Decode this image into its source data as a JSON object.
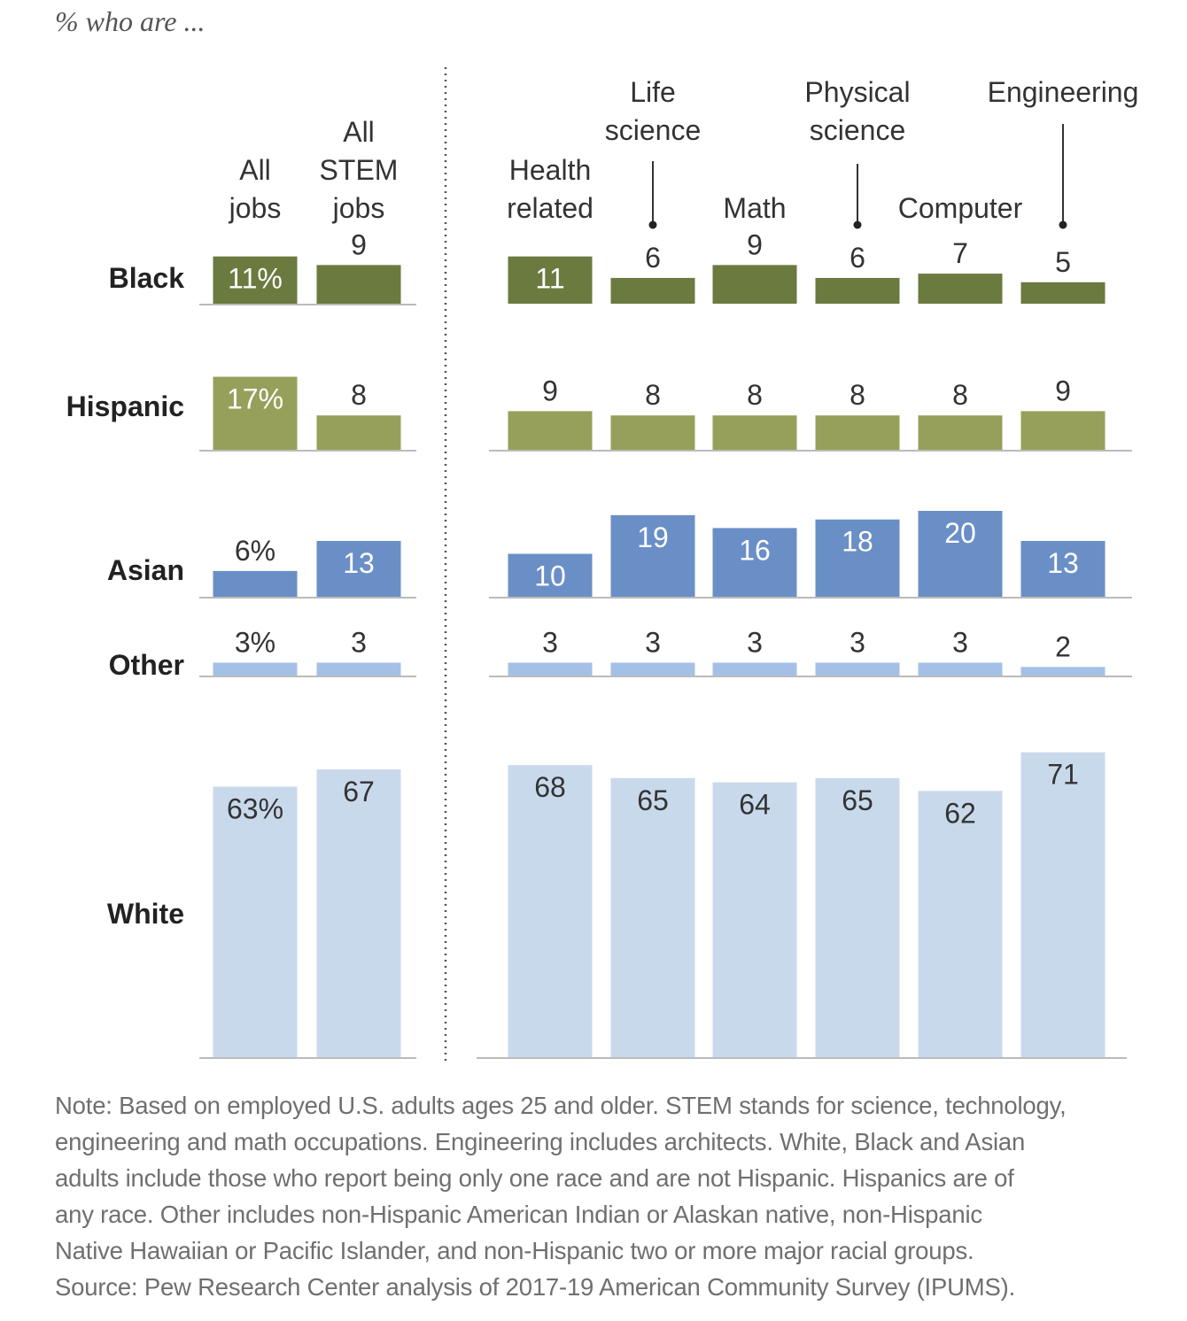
{
  "subtitle": "% who are ...",
  "note": {
    "lines": [
      "Note: Based on employed U.S. adults ages 25 and older. STEM stands for science, technology,",
      "engineering and math occupations. Engineering includes architects. White, Black and Asian",
      "adults include those who report being only one race and are not Hispanic. Hispanics are of",
      "any race. Other includes non-Hispanic American Indian or Alaskan native, non-Hispanic",
      "Native Hawaiian or Pacific Islander, and non-Hispanic two or more major racial groups.",
      "Source: Pew Research Center analysis of 2017-19 American Community Survey (IPUMS)."
    ]
  },
  "chart_data": {
    "type": "bar",
    "categories": [
      [
        "All",
        "jobs"
      ],
      [
        "All",
        "STEM",
        "jobs"
      ],
      [
        "Health",
        "related"
      ],
      [
        "Life",
        "science"
      ],
      [
        "Math"
      ],
      [
        "Physical",
        "science"
      ],
      [
        "Computer"
      ],
      [
        "Engineering"
      ]
    ],
    "series": [
      {
        "name": "Black",
        "color": "#6b7a3f",
        "label_color": "#ffffff",
        "values": [
          11,
          9,
          11,
          6,
          9,
          6,
          7,
          5
        ],
        "labels": [
          "11%",
          "9",
          "11",
          "6",
          "9",
          "6",
          "7",
          "5"
        ]
      },
      {
        "name": "Hispanic",
        "color": "#97a05a",
        "label_color": "#ffffff",
        "values": [
          17,
          8,
          9,
          8,
          8,
          8,
          8,
          9
        ],
        "labels": [
          "17%",
          "8",
          "9",
          "8",
          "8",
          "8",
          "8",
          "9"
        ]
      },
      {
        "name": "Asian",
        "color": "#6a8fc6",
        "label_color": "#ffffff",
        "values": [
          6,
          13,
          10,
          19,
          16,
          18,
          20,
          13
        ],
        "labels": [
          "6%",
          "13",
          "10",
          "19",
          "16",
          "18",
          "20",
          "13"
        ]
      },
      {
        "name": "Other",
        "color": "#a4c0e6",
        "label_color": "#333333",
        "values": [
          3,
          3,
          3,
          3,
          3,
          3,
          3,
          2
        ],
        "labels": [
          "3%",
          "3",
          "3",
          "3",
          "3",
          "3",
          "3",
          "2"
        ]
      },
      {
        "name": "White",
        "color": "#c9d9ec",
        "label_color": "#333333",
        "values": [
          63,
          67,
          68,
          65,
          64,
          65,
          62,
          71
        ],
        "labels": [
          "63%",
          "67",
          "68",
          "65",
          "64",
          "65",
          "62",
          "71"
        ]
      }
    ],
    "groups": [
      "overall",
      "overall",
      "stem",
      "stem",
      "stem",
      "stem",
      "stem",
      "stem"
    ],
    "divider": "dotted line between All STEM jobs and Health related",
    "grid": false,
    "legend": "none (row labels at left)"
  }
}
